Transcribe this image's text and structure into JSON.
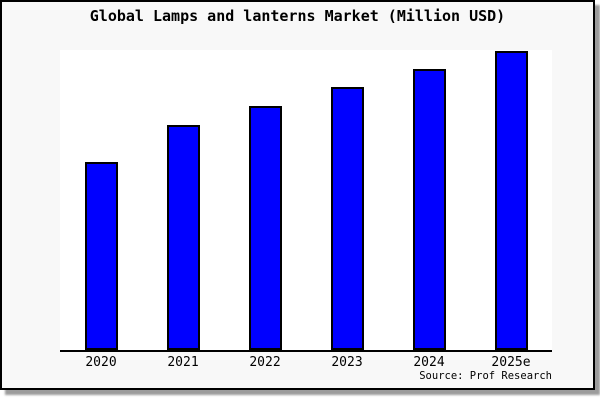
{
  "title": "Global Lamps and lanterns Market (Million USD)",
  "source_note": "Source: Prof Research",
  "colors": {
    "bar_fill": "#0000ff",
    "bar_border": "#000000",
    "card_background": "#f8f8f8",
    "plot_background": "#ffffff",
    "axis": "#000000",
    "card_border": "#000000",
    "shadow": "#9c9c9c",
    "text": "#000000"
  },
  "chart_data": {
    "type": "bar",
    "title": "Global Lamps and lanterns Market (Million USD)",
    "categories": [
      "2020",
      "2021",
      "2022",
      "2023",
      "2024",
      "2025e"
    ],
    "values": [
      62.7,
      75.0,
      81.3,
      87.7,
      93.7,
      99.7
    ],
    "value_note": "No y-axis ticks or data labels shown; values estimated as percent of plot height (tallest bar 2025e = ~100)",
    "series_name": "Global Lamps and lanterns Market",
    "xlabel": "",
    "ylabel": "",
    "ylim": [
      0,
      100
    ],
    "grid": false,
    "legend": null,
    "bar_color": "#0000ff",
    "source_note": "Source: Prof Research"
  }
}
